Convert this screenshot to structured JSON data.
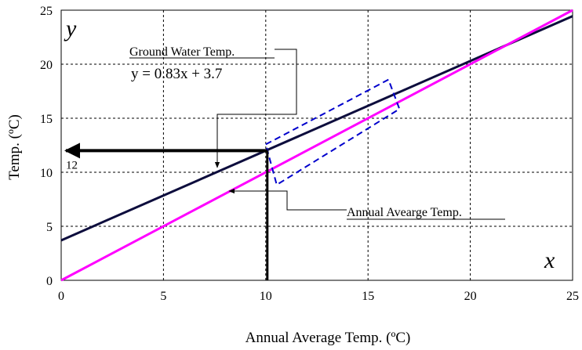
{
  "chart_data": {
    "type": "line",
    "xlabel": "Annual Average Temp. (ºC)",
    "ylabel": "Temp. (ºC)",
    "xlim": [
      0,
      25
    ],
    "ylim": [
      0,
      25
    ],
    "x_ticks": [
      0,
      5,
      10,
      15,
      20,
      25
    ],
    "y_ticks": [
      0,
      5,
      10,
      15,
      20,
      25
    ],
    "grid": true,
    "x_corner_label": "x",
    "y_corner_label": "y",
    "series": [
      {
        "name": "Ground Water Temp.",
        "equation": "y = 0.83x + 3.7",
        "slope": 0.83,
        "intercept": 3.7,
        "x": [
          0,
          25
        ],
        "y": [
          3.7,
          24.45
        ],
        "color": "#0d0d3d"
      },
      {
        "name": "Annual Avearge Temp.",
        "slope": 1,
        "intercept": 0,
        "x": [
          0,
          25
        ],
        "y": [
          0,
          25
        ],
        "color": "#ff00ff"
      }
    ],
    "annotations": {
      "readout_value_label": "12",
      "readout_x": 10,
      "readout_y": 12,
      "highlight_box": {
        "x_range": [
          10,
          16
        ],
        "color": "#0000cc"
      }
    }
  }
}
